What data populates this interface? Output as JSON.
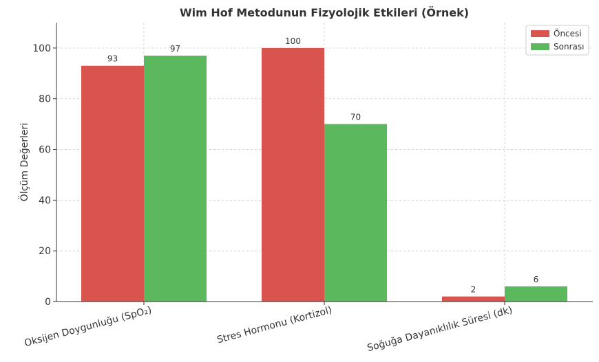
{
  "chart_data": {
    "type": "bar",
    "title": "Wim Hof Metodunun Fizyolojik Etkileri (Örnek)",
    "xlabel": "",
    "ylabel": "Ölçüm Değerleri",
    "categories": [
      "Oksijen Doygunluğu (SpO₂)",
      "Stres Hormonu (Kortizol)",
      "Soğuğa Dayanıklılık Süresi (dk)"
    ],
    "series": [
      {
        "name": "Öncesi",
        "values": [
          93,
          100,
          2
        ],
        "color": "#d9534f"
      },
      {
        "name": "Sonrası",
        "values": [
          97,
          70,
          6
        ],
        "color": "#5cb85c"
      }
    ],
    "ylim": [
      0,
      110
    ],
    "yticks": [
      0,
      20,
      40,
      60,
      80,
      100
    ],
    "grid": true,
    "legend_position": "top-right"
  }
}
